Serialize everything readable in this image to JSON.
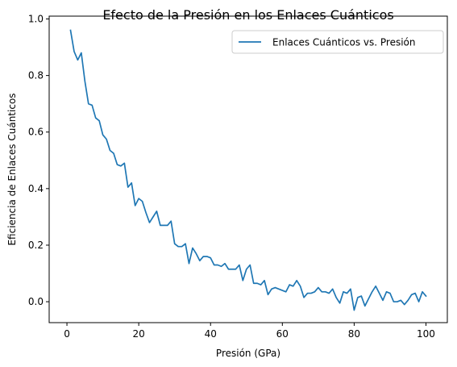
{
  "chart_data": {
    "type": "line",
    "title": "Efecto de la Presión en los Enlaces Cuánticos",
    "xlabel": "Presión (GPa)",
    "ylabel": "Eficiencia de Enlaces Cuánticos",
    "xlim": [
      -4.95,
      105.95
    ],
    "ylim": [
      -0.074,
      1.01
    ],
    "xticks": [
      0,
      20,
      40,
      60,
      80,
      100
    ],
    "yticks": [
      0.0,
      0.2,
      0.4,
      0.6,
      0.8,
      1.0
    ],
    "xtick_labels": [
      "0",
      "20",
      "40",
      "60",
      "80",
      "100"
    ],
    "ytick_labels": [
      "0.0",
      "0.2",
      "0.4",
      "0.6",
      "0.8",
      "1.0"
    ],
    "grid": false,
    "legend_position": "top-right",
    "series": [
      {
        "name": "Enlaces Cuánticos vs. Presión",
        "color": "#1f77b4",
        "x": [
          1,
          2,
          3,
          4,
          5,
          6,
          7,
          8,
          9,
          10,
          11,
          12,
          13,
          14,
          15,
          16,
          17,
          18,
          19,
          20,
          21,
          22,
          23,
          24,
          25,
          26,
          27,
          28,
          29,
          30,
          31,
          32,
          33,
          34,
          35,
          36,
          37,
          38,
          39,
          40,
          41,
          42,
          43,
          44,
          45,
          46,
          47,
          48,
          49,
          50,
          51,
          52,
          53,
          54,
          55,
          56,
          57,
          58,
          59,
          60,
          61,
          62,
          63,
          64,
          65,
          66,
          67,
          68,
          69,
          70,
          71,
          72,
          73,
          74,
          75,
          76,
          77,
          78,
          79,
          80,
          81,
          82,
          83,
          84,
          85,
          86,
          87,
          88,
          89,
          90,
          91,
          92,
          93,
          94,
          95,
          96,
          97,
          98,
          99,
          100
        ],
        "y": [
          0.96,
          0.885,
          0.855,
          0.88,
          0.78,
          0.7,
          0.695,
          0.65,
          0.64,
          0.59,
          0.575,
          0.535,
          0.525,
          0.485,
          0.48,
          0.49,
          0.405,
          0.42,
          0.34,
          0.365,
          0.355,
          0.315,
          0.28,
          0.3,
          0.32,
          0.27,
          0.27,
          0.27,
          0.285,
          0.205,
          0.195,
          0.195,
          0.205,
          0.135,
          0.19,
          0.17,
          0.145,
          0.16,
          0.16,
          0.155,
          0.13,
          0.13,
          0.125,
          0.135,
          0.115,
          0.115,
          0.115,
          0.13,
          0.075,
          0.115,
          0.13,
          0.065,
          0.065,
          0.06,
          0.075,
          0.025,
          0.045,
          0.05,
          0.045,
          0.04,
          0.035,
          0.06,
          0.055,
          0.075,
          0.055,
          0.015,
          0.03,
          0.03,
          0.035,
          0.05,
          0.035,
          0.035,
          0.03,
          0.045,
          0.015,
          -0.005,
          0.035,
          0.03,
          0.045,
          -0.03,
          0.015,
          0.02,
          -0.015,
          0.01,
          0.035,
          0.055,
          0.03,
          0.005,
          0.035,
          0.03,
          0.0,
          0.0,
          0.005,
          -0.01,
          0.005,
          0.025,
          0.03,
          0.0,
          0.035,
          0.02
        ]
      }
    ]
  }
}
